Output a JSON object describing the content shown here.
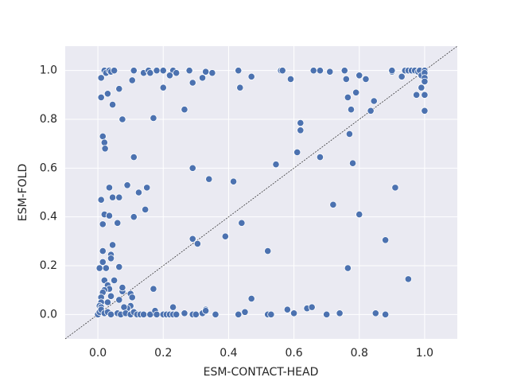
{
  "chart_data": {
    "type": "scatter",
    "x_label": "ESM-CONTACT-HEAD",
    "y_label": "ESM-FOLD",
    "xlim": [
      -0.1,
      1.1
    ],
    "ylim": [
      -0.1,
      1.1
    ],
    "xticks": [
      {
        "value": 0,
        "label": "0.0"
      },
      0.2,
      0.4,
      0.6,
      0.8,
      {
        "value": 1,
        "label": "1.0"
      }
    ],
    "yticks": [
      {
        "value": 0,
        "label": "0.0"
      },
      0.2,
      0.4,
      0.6,
      0.8,
      {
        "value": 1,
        "label": "1.0"
      }
    ],
    "grid": true,
    "color": "#4c72b0",
    "x": [
      0.01,
      0.02,
      0.025,
      0.035,
      0.04,
      0.05,
      0.11,
      0.14,
      0.155,
      0.16,
      0.18,
      0.2,
      0.23,
      0.24,
      0.28,
      0.32,
      0.33,
      0.35,
      0.43,
      0.47,
      0.56,
      0.565,
      0.59,
      0.66,
      0.68,
      0.71,
      0.755,
      0.76,
      0.8,
      0.82,
      0.9,
      0.9,
      0.93,
      0.94,
      0.95,
      0.96,
      0.97,
      0.98,
      0.985,
      0.99,
      1.0,
      1.0,
      1.0,
      1.0,
      0.99,
      0.975,
      1.0,
      1.0,
      0.01,
      0.03,
      0.045,
      0.065,
      0.105,
      0.2,
      0.22,
      0.29,
      0.435,
      0.265,
      0.17,
      0.075,
      0.765,
      0.775,
      0.79,
      0.835,
      0.845,
      0.77,
      0.015,
      0.02,
      0.022,
      0.62,
      0.62,
      0.61,
      0.68,
      0.78,
      0.11,
      0.29,
      0.545,
      0.34,
      0.415,
      0.09,
      0.15,
      0.035,
      0.125,
      0.045,
      0.065,
      0.01,
      0.145,
      0.72,
      0.8,
      0.91,
      0.02,
      0.035,
      0.11,
      0.06,
      0.015,
      0.44,
      0.39,
      0.29,
      0.305,
      0.88,
      0.045,
      0.015,
      0.52,
      0.04,
      0.04,
      0.015,
      0.005,
      0.025,
      0.065,
      0.765,
      0.95,
      0.02,
      0.05,
      0.03,
      0.035,
      0.02,
      0.17,
      0.075,
      0.075,
      0.015,
      0.01,
      0.04,
      0.1,
      0.105,
      0.065,
      0.47,
      0.01,
      0.03,
      0.005,
      0.01,
      0.1,
      0.09,
      0.08,
      0.23,
      0.33,
      0.58,
      0.64,
      0.655,
      0.0,
      0.005,
      0.01,
      0.02,
      0.03,
      0.04,
      0.06,
      0.07,
      0.085,
      0.1,
      0.11,
      0.12,
      0.13,
      0.14,
      0.16,
      0.175,
      0.18,
      0.2,
      0.21,
      0.22,
      0.23,
      0.24,
      0.265,
      0.29,
      0.3,
      0.32,
      0.33,
      0.36,
      0.43,
      0.45,
      0.52,
      0.53,
      0.6,
      0.7,
      0.74,
      0.85,
      0.88
    ],
    "y": [
      0.97,
      1.0,
      0.99,
      1.0,
      0.995,
      1.0,
      1.0,
      0.99,
      1.0,
      0.99,
      1.0,
      1.0,
      1.0,
      0.99,
      1.0,
      0.97,
      0.995,
      0.99,
      1.0,
      0.975,
      1.0,
      1.0,
      0.965,
      1.0,
      1.0,
      0.995,
      1.0,
      0.965,
      0.98,
      0.965,
      0.995,
      1.0,
      0.975,
      1.0,
      1.0,
      1.0,
      1.0,
      0.995,
      1.0,
      0.98,
      1.0,
      0.99,
      0.97,
      0.955,
      0.93,
      0.9,
      0.9,
      0.835,
      0.89,
      0.905,
      0.86,
      0.925,
      0.96,
      0.93,
      0.98,
      0.95,
      0.93,
      0.84,
      0.805,
      0.8,
      0.89,
      0.84,
      0.91,
      0.835,
      0.875,
      0.74,
      0.73,
      0.705,
      0.68,
      0.785,
      0.755,
      0.665,
      0.645,
      0.62,
      0.645,
      0.6,
      0.615,
      0.555,
      0.545,
      0.53,
      0.52,
      0.52,
      0.5,
      0.48,
      0.48,
      0.47,
      0.43,
      0.45,
      0.41,
      0.52,
      0.41,
      0.405,
      0.4,
      0.375,
      0.37,
      0.375,
      0.32,
      0.31,
      0.29,
      0.305,
      0.285,
      0.26,
      0.26,
      0.245,
      0.23,
      0.215,
      0.19,
      0.19,
      0.195,
      0.19,
      0.145,
      0.14,
      0.14,
      0.12,
      0.105,
      0.1,
      0.105,
      0.095,
      0.11,
      0.09,
      0.07,
      0.075,
      0.085,
      0.07,
      0.06,
      0.065,
      0.05,
      0.05,
      0.035,
      0.03,
      0.035,
      0.025,
      0.03,
      0.03,
      0.02,
      0.02,
      0.025,
      0.03,
      0.0,
      0.01,
      0.02,
      0.005,
      0.01,
      0.0,
      0.005,
      0.0,
      0.005,
      0.0,
      0.01,
      0.0,
      0.0,
      0.0,
      0.0,
      0.015,
      0.0,
      0.0,
      0.0,
      0.0,
      0.0,
      0.0,
      0.005,
      0.0,
      0.0,
      0.005,
      0.015,
      0.0,
      0.0,
      0.01,
      0.0,
      0.0,
      0.005,
      0.0,
      0.005,
      0.005,
      0.0
    ]
  }
}
